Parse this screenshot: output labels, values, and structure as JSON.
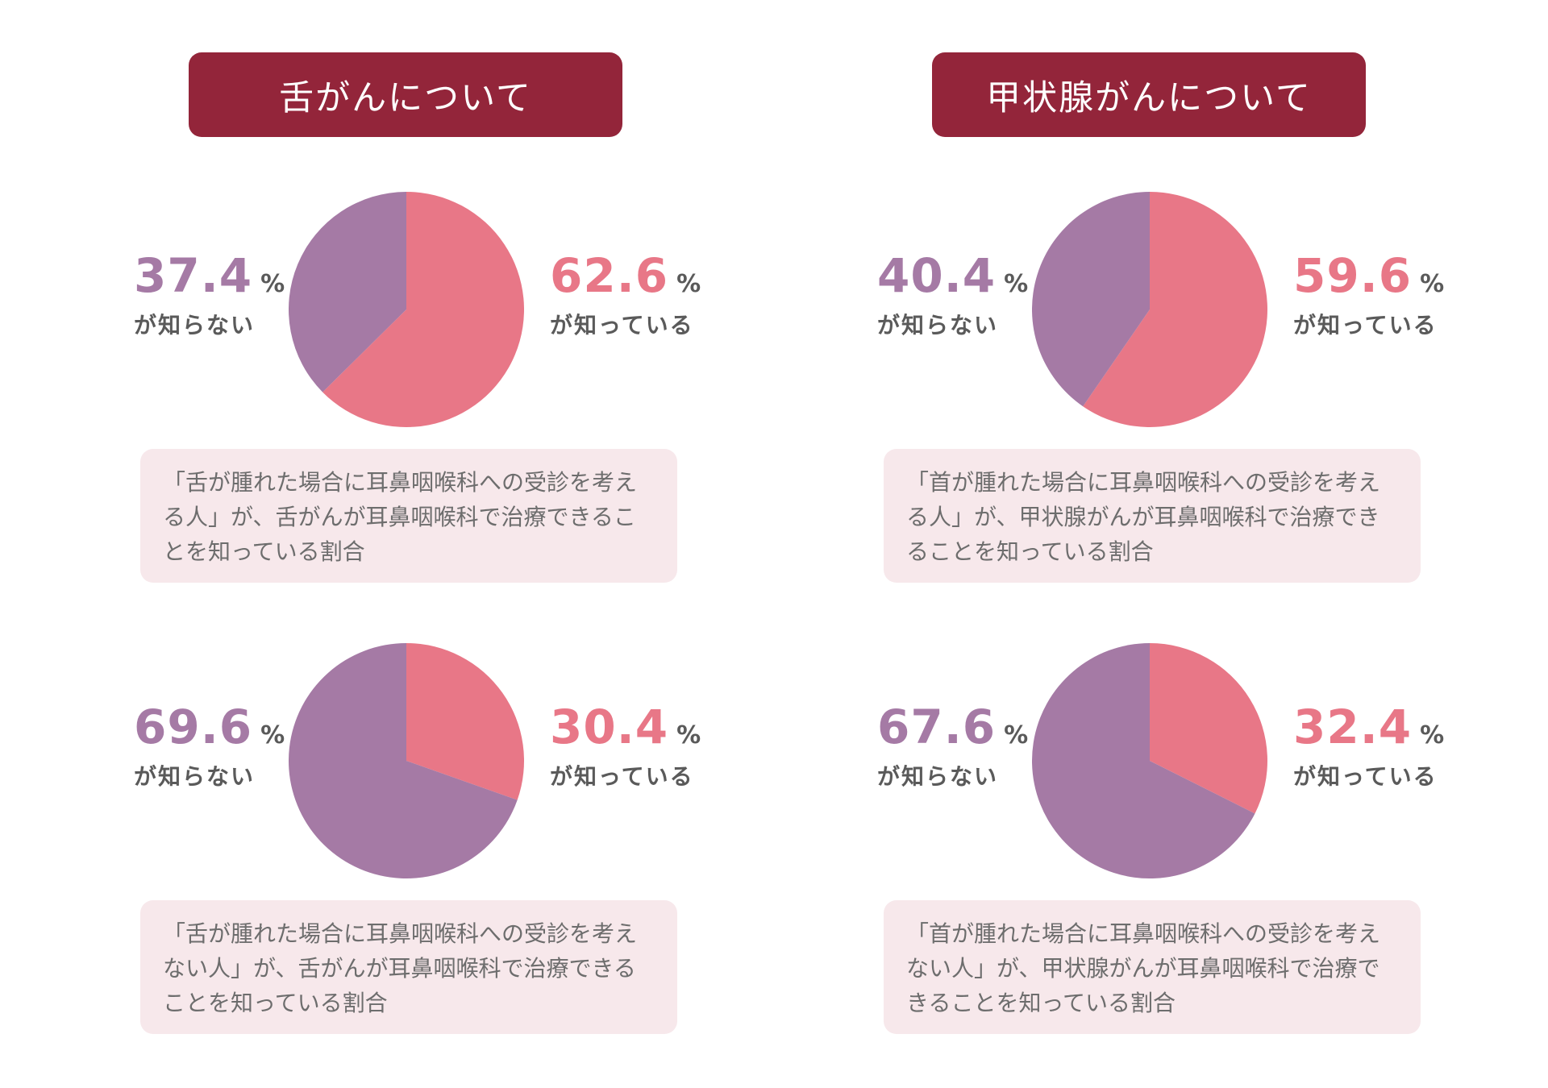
{
  "colors": {
    "header_bg": "#93253a",
    "known": "#e87787",
    "unknown": "#a57aa5",
    "caption_bg": "#f7e8eb"
  },
  "sections": [
    {
      "title": "舌がんについて",
      "charts": [
        {
          "unknown_pct": "37.4",
          "unknown_label": "が知らない",
          "known_pct": "62.6",
          "known_label": "が知っている",
          "pct_sign": "%",
          "caption": "「舌が腫れた場合に耳鼻咽喉科への受診を考える人」が、舌がんが耳鼻咽喉科で治療できることを知っている割合"
        },
        {
          "unknown_pct": "69.6",
          "unknown_label": "が知らない",
          "known_pct": "30.4",
          "known_label": "が知っている",
          "pct_sign": "%",
          "caption": "「舌が腫れた場合に耳鼻咽喉科への受診を考えない人」が、舌がんが耳鼻咽喉科で治療できることを知っている割合"
        }
      ]
    },
    {
      "title": "甲状腺がんについて",
      "charts": [
        {
          "unknown_pct": "40.4",
          "unknown_label": "が知らない",
          "known_pct": "59.6",
          "known_label": "が知っている",
          "pct_sign": "%",
          "caption": "「首が腫れた場合に耳鼻咽喉科への受診を考える人」が、甲状腺がんが耳鼻咽喉科で治療できることを知っている割合"
        },
        {
          "unknown_pct": "67.6",
          "unknown_label": "が知らない",
          "known_pct": "32.4",
          "known_label": "が知っている",
          "pct_sign": "%",
          "caption": "「首が腫れた場合に耳鼻咽喉科への受診を考えない人」が、甲状腺がんが耳鼻咽喉科で治療できることを知っている割合"
        }
      ]
    }
  ],
  "chart_data": [
    {
      "type": "pie",
      "categories": [
        "が知っている",
        "が知らない"
      ],
      "values": [
        62.6,
        37.4
      ]
    },
    {
      "type": "pie",
      "categories": [
        "が知っている",
        "が知らない"
      ],
      "values": [
        30.4,
        69.6
      ]
    },
    {
      "type": "pie",
      "categories": [
        "が知っている",
        "が知らない"
      ],
      "values": [
        59.6,
        40.4
      ]
    },
    {
      "type": "pie",
      "categories": [
        "が知っている",
        "が知らない"
      ],
      "values": [
        32.4,
        67.6
      ]
    }
  ]
}
